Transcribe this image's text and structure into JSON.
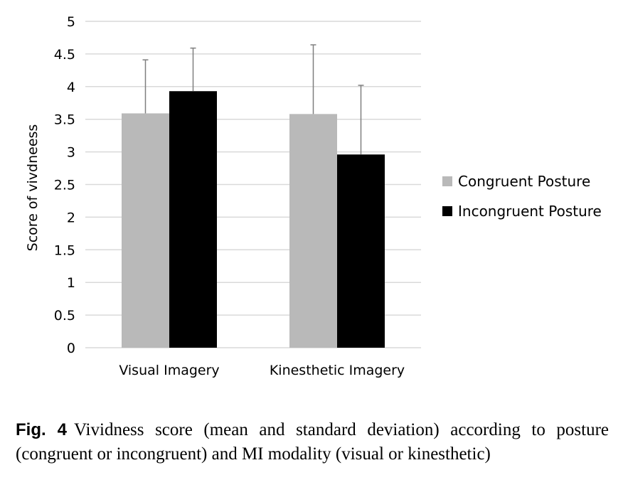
{
  "caption": {
    "label": "Fig. 4",
    "text": "Vividness score (mean and standard deviation) according to posture (congruent or incongruent) and MI modality (visual or kinesthetic)"
  },
  "chart_data": {
    "type": "bar",
    "title": "",
    "xlabel": "",
    "ylabel": "Score of vivdneess",
    "ylim": [
      0,
      5
    ],
    "yticks": [
      "0",
      "0.5",
      "1",
      "1.5",
      "2",
      "2.5",
      "3",
      "3.5",
      "4",
      "4.5",
      "5"
    ],
    "grid": true,
    "legend_position": "right",
    "categories": [
      "Visual Imagery",
      "Kinesthetic Imagery"
    ],
    "series": [
      {
        "name": "Congruent Posture",
        "color": "#b9b9b9",
        "values": [
          3.59,
          3.58
        ],
        "error_upper": [
          4.41,
          4.64
        ]
      },
      {
        "name": "Incongruent Posture",
        "color": "#000000",
        "values": [
          3.93,
          2.96
        ],
        "error_upper": [
          4.59,
          4.02
        ]
      }
    ],
    "colors": {
      "grid": "#d9d9d9",
      "error_bar": "#7f7f7f"
    }
  }
}
